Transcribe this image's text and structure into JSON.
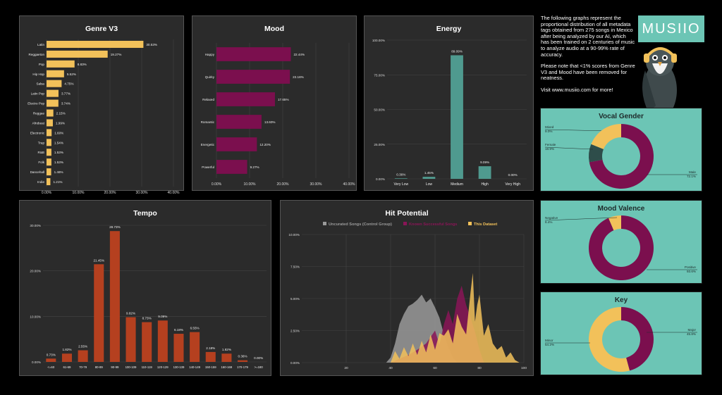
{
  "info": {
    "p1": "The following graphs represent the proportional distribution of all metadata tags obtained from 275 songs in Mexico after being analyzed by our AI, which has been trained on 2 centuries of music to analyze audio at a 90-99% rate of accuracy.",
    "p2": "Please note that <1% scores from Genre V3 and Mood have been removed for neatness.",
    "p3": "Visit www.musiio.com for more!",
    "logo": "MUSIIO"
  },
  "colors": {
    "genre": "#f2c15a",
    "mood": "#7b0f4e",
    "energy": "#4f9a8f",
    "tempo": "#b5401f",
    "teal_bg": "#6cc5b5",
    "panel_bg": "#2b2b2b"
  },
  "chart_data": [
    {
      "id": "genre",
      "type": "bar",
      "orientation": "horizontal",
      "title": "Genre V3",
      "categories": [
        "Latin",
        "Reggaeton",
        "Pop",
        "Hip Hop",
        "Salsa",
        "Latin Pop",
        "Electro Pop",
        "Reggae",
        "Afrobeat",
        "Electronic",
        "Trap",
        "R&B",
        "Folk",
        "Dancehall",
        "Indie"
      ],
      "values": [
        30.53,
        19.27,
        8.83,
        5.52,
        4.75,
        3.77,
        3.74,
        2.15,
        1.99,
        1.6,
        1.54,
        1.53,
        1.53,
        1.46,
        1.21
      ],
      "labels": [
        "30.53%",
        "19.27%",
        "8.83%",
        "5.52%",
        "4.75%",
        "3.77%",
        "3.74%",
        "2.15%",
        "1.99%",
        "1.60%",
        "1.54%",
        "1.53%",
        "1.53%",
        "1.46%",
        "1.21%"
      ],
      "xlim": [
        0,
        40
      ],
      "xticks": [
        "0.00%",
        "10.00%",
        "20.00%",
        "30.00%",
        "40.00%"
      ],
      "grid": true
    },
    {
      "id": "mood",
      "type": "bar",
      "orientation": "horizontal",
      "title": "Mood",
      "categories": [
        "Happy",
        "Quirky",
        "Relaxed",
        "Romantic",
        "Energetic",
        "Powerful"
      ],
      "values": [
        22.44,
        22.16,
        17.65,
        13.6,
        12.2,
        9.27
      ],
      "labels": [
        "22.44%",
        "22.16%",
        "17.65%",
        "13.60%",
        "12.20%",
        "9.27%"
      ],
      "xlim": [
        0,
        40
      ],
      "xticks": [
        "0.00%",
        "10.00%",
        "20.00%",
        "30.00%",
        "40.00%"
      ],
      "grid": true
    },
    {
      "id": "energy",
      "type": "bar",
      "title": "Energy",
      "categories": [
        "Very Low",
        "Low",
        "Medium",
        "High",
        "Very High"
      ],
      "values": [
        0.36,
        1.45,
        89.09,
        9.09,
        0.0
      ],
      "labels": [
        "0.36%",
        "1.45%",
        "89.09%",
        "9.09%",
        "0.00%"
      ],
      "ylim": [
        0,
        100
      ],
      "yticks": [
        "0.00%",
        "25.00%",
        "50.00%",
        "75.00%",
        "100.00%"
      ],
      "grid": true
    },
    {
      "id": "tempo",
      "type": "bar",
      "title": "Tempo",
      "categories": [
        "<=60",
        "61-69",
        "70-79",
        "80-89",
        "90-99",
        "100-109",
        "110-119",
        "120-129",
        "130-139",
        "140-149",
        "150-159",
        "160-169",
        "170-179",
        ">=180"
      ],
      "values": [
        0.73,
        1.82,
        2.55,
        21.45,
        28.73,
        9.82,
        8.73,
        9.09,
        6.18,
        6.55,
        2.18,
        1.82,
        0.36,
        0.0
      ],
      "labels": [
        "0.73%",
        "1.82%",
        "2.55%",
        "21.45%",
        "28.73%",
        "9.82%",
        "8.73%",
        "9.09%",
        "6.18%",
        "6.55%",
        "2.18%",
        "1.82%",
        "0.36%",
        "0.00%"
      ],
      "ylim": [
        0,
        30
      ],
      "yticks": [
        "0.00%",
        "10.00%",
        "20.00%",
        "30.00%"
      ],
      "grid": true
    },
    {
      "id": "hit",
      "type": "area",
      "title": "Hit Potential",
      "xlim": [
        0,
        100
      ],
      "xticks": [
        "20",
        "40",
        "60",
        "80",
        "100"
      ],
      "ylim": [
        0,
        10
      ],
      "yticks": [
        "0.00%",
        "2.50%",
        "5.00%",
        "7.50%",
        "10.00%"
      ],
      "legend_position": "top",
      "series": [
        {
          "name": "Uncurated Songs (Control Group)",
          "color": "#9a9a9a",
          "x": [
            38,
            40,
            42,
            44,
            46,
            48,
            50,
            52,
            54,
            56,
            58,
            60,
            62,
            64,
            66,
            68,
            70
          ],
          "y": [
            0,
            0.4,
            1.5,
            3.0,
            3.8,
            4.4,
            4.6,
            4.9,
            5.3,
            4.7,
            5.0,
            4.3,
            3.5,
            2.2,
            1.2,
            0.4,
            0
          ]
        },
        {
          "name": "Known Successful Songs",
          "color": "#8a1557",
          "x": [
            40,
            44,
            48,
            52,
            56,
            58,
            60,
            62,
            64,
            66,
            68,
            70,
            72,
            74,
            76,
            78,
            80,
            82
          ],
          "y": [
            0,
            0.3,
            0.6,
            1.0,
            1.5,
            2.0,
            2.5,
            1.4,
            3.0,
            4.1,
            3.0,
            5.0,
            6.0,
            4.5,
            3.5,
            2.4,
            1.0,
            0
          ]
        },
        {
          "name": "This Dataset",
          "color": "#f2c15a",
          "x": [
            40,
            42,
            44,
            46,
            48,
            50,
            52,
            54,
            56,
            58,
            60,
            62,
            64,
            66,
            68,
            70,
            72,
            74,
            76,
            77,
            78,
            79,
            80,
            82,
            84,
            86,
            88,
            90,
            92,
            94,
            96,
            98
          ],
          "y": [
            0,
            0.9,
            0.3,
            1.2,
            0.5,
            1.5,
            0.6,
            1.7,
            0.8,
            2.2,
            1.0,
            2.3,
            2.1,
            2.6,
            1.5,
            3.8,
            2.8,
            2.2,
            5.5,
            7.0,
            3.2,
            4.5,
            5.3,
            2.1,
            3.0,
            1.5,
            1.0,
            1.3,
            0.4,
            0.8,
            0.2,
            0
          ]
        }
      ]
    },
    {
      "id": "vocal",
      "type": "pie",
      "title": "Vocal Gender",
      "slices": [
        {
          "name": "Male",
          "value": 72.1,
          "label": "72.1%",
          "color": "#7b0f4e"
        },
        {
          "name": "Mixed",
          "value": 9.0,
          "label": "9.0%",
          "color": "#2e4d4a"
        },
        {
          "name": "Female",
          "value": 18.9,
          "label": "18.9%",
          "color": "#f2c15a"
        }
      ]
    },
    {
      "id": "valence",
      "type": "pie",
      "title": "Mood Valence",
      "slices": [
        {
          "name": "Positive",
          "value": 93.6,
          "label": "93.6%",
          "color": "#7b0f4e"
        },
        {
          "name": "Negative",
          "value": 6.4,
          "label": "6.4%",
          "color": "#f2c15a"
        }
      ]
    },
    {
      "id": "key",
      "type": "pie",
      "title": "Key",
      "slices": [
        {
          "name": "Major",
          "value": 45.8,
          "label": "45.8%",
          "color": "#7b0f4e"
        },
        {
          "name": "Minor",
          "value": 54.2,
          "label": "54.2%",
          "color": "#f2c15a"
        }
      ]
    }
  ]
}
